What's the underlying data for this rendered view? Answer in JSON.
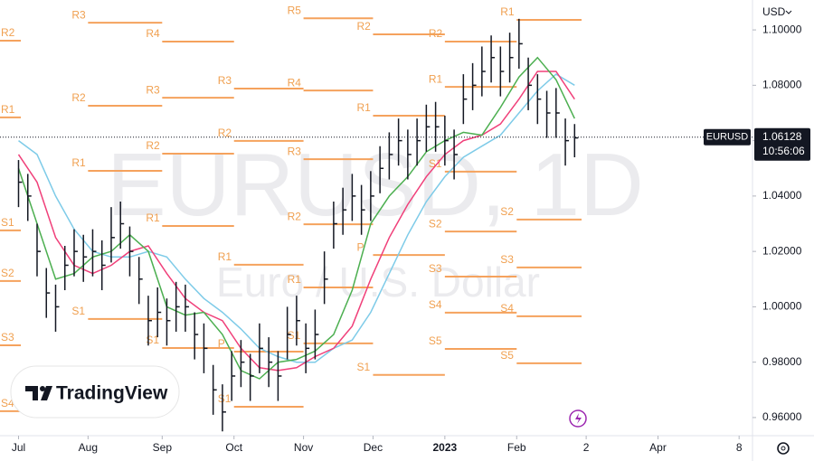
{
  "chart_data": {
    "type": "hlc",
    "watermark": "EURUSD, 1D",
    "watermark_subtitle": "Euro / U.S. Dollar",
    "brand": "TradingView",
    "currency": "USD",
    "symbol": "EURUSD",
    "last_price": 1.06128,
    "countdown": "10:56:06",
    "color": "#131722",
    "x": [
      0,
      4,
      8,
      12,
      16,
      20,
      24,
      28,
      32,
      36,
      40,
      44,
      48,
      52,
      56,
      60,
      64,
      68,
      72,
      76,
      80,
      84,
      88,
      92,
      96,
      100,
      104,
      108,
      112,
      116,
      120,
      124,
      128,
      132,
      136,
      140,
      144,
      148,
      152,
      156,
      160,
      164,
      168,
      172,
      176,
      180,
      184,
      188,
      192,
      196,
      200,
      204,
      208,
      212,
      216,
      220,
      224,
      228,
      232,
      236,
      240
    ],
    "high": [
      1.053,
      1.048,
      1.03,
      1.014,
      1.008,
      1.022,
      1.028,
      1.026,
      1.028,
      1.024,
      1.036,
      1.038,
      1.029,
      1.018,
      1.004,
      1.007,
      1.003,
      1.009,
      1.008,
      0.998,
      0.994,
      0.979,
      0.972,
      0.984,
      0.988,
      0.983,
      0.994,
      0.989,
      0.984,
      1.0,
      1.004,
      0.994,
      0.999,
      1.02,
      1.038,
      1.043,
      1.048,
      1.044,
      1.049,
      1.058,
      1.063,
      1.068,
      1.064,
      1.068,
      1.073,
      1.074,
      1.069,
      1.064,
      1.084,
      1.088,
      1.094,
      1.098,
      1.094,
      1.099,
      1.104,
      1.09,
      1.084,
      1.078,
      1.079,
      1.068,
      1.066
    ],
    "low": [
      1.036,
      1.031,
      1.011,
      0.996,
      0.991,
      1.006,
      1.011,
      1.009,
      1.011,
      1.006,
      1.016,
      1.021,
      1.011,
      1.001,
      0.986,
      0.989,
      0.986,
      0.991,
      0.991,
      0.981,
      0.976,
      0.961,
      0.955,
      0.966,
      0.971,
      0.966,
      0.976,
      0.971,
      0.966,
      0.981,
      0.986,
      0.976,
      0.981,
      1.001,
      1.021,
      1.026,
      1.031,
      1.026,
      1.031,
      1.041,
      1.046,
      1.051,
      1.046,
      1.051,
      1.056,
      1.056,
      1.051,
      1.046,
      1.066,
      1.071,
      1.076,
      1.081,
      1.076,
      1.081,
      1.086,
      1.071,
      1.066,
      1.061,
      1.061,
      1.051,
      1.054
    ],
    "close": [
      1.045,
      1.04,
      1.02,
      1.005,
      1.0,
      1.015,
      1.02,
      1.018,
      1.02,
      1.015,
      1.025,
      1.03,
      1.02,
      1.01,
      0.995,
      0.998,
      0.995,
      1.0,
      1.0,
      0.99,
      0.985,
      0.97,
      0.962,
      0.975,
      0.98,
      0.975,
      0.985,
      0.98,
      0.975,
      0.99,
      0.995,
      0.985,
      0.99,
      1.01,
      1.03,
      1.035,
      1.04,
      1.035,
      1.04,
      1.05,
      1.055,
      1.06,
      1.055,
      1.06,
      1.065,
      1.065,
      1.06,
      1.055,
      1.075,
      1.08,
      1.085,
      1.09,
      1.085,
      1.09,
      1.095,
      1.08,
      1.075,
      1.07,
      1.07,
      1.06,
      1.061
    ],
    "ma_x": [
      0,
      8,
      16,
      24,
      32,
      40,
      48,
      56,
      64,
      72,
      80,
      88,
      96,
      104,
      112,
      120,
      128,
      136,
      144,
      152,
      160,
      168,
      176,
      184,
      192,
      200,
      208,
      216,
      224,
      232,
      240
    ],
    "lines": [
      {
        "color": "#7ecbe8",
        "values": [
          1.06,
          1.055,
          1.04,
          1.028,
          1.02,
          1.018,
          1.018,
          1.02,
          1.018,
          1.01,
          1.003,
          0.998,
          0.992,
          0.985,
          0.982,
          0.98,
          0.98,
          0.985,
          0.988,
          0.998,
          1.012,
          1.026,
          1.038,
          1.047,
          1.054,
          1.058,
          1.062,
          1.07,
          1.078,
          1.084,
          1.08
        ]
      },
      {
        "color": "#f0407a",
        "values": [
          1.055,
          1.045,
          1.025,
          1.015,
          1.012,
          1.015,
          1.02,
          1.022,
          1.012,
          1.003,
          0.998,
          0.995,
          0.985,
          0.978,
          0.977,
          0.978,
          0.982,
          0.985,
          0.993,
          1.01,
          1.025,
          1.037,
          1.047,
          1.055,
          1.06,
          1.062,
          1.066,
          1.075,
          1.085,
          1.085,
          1.075
        ]
      },
      {
        "color": "#4caf50",
        "values": [
          1.05,
          1.03,
          1.01,
          1.012,
          1.018,
          1.02,
          1.026,
          1.02,
          1.0,
          0.997,
          0.998,
          0.99,
          0.977,
          0.974,
          0.98,
          0.981,
          0.984,
          0.99,
          1.006,
          1.03,
          1.04,
          1.047,
          1.056,
          1.06,
          1.063,
          1.062,
          1.072,
          1.083,
          1.09,
          1.082,
          1.068
        ]
      }
    ],
    "pivot_color": "#f5a25d",
    "pivots": [
      {
        "label": "R2",
        "x0": -8,
        "x1": 1,
        "value": 1.0961
      },
      {
        "label": "R1",
        "x0": -8,
        "x1": 1,
        "value": 1.0684
      },
      {
        "label": "S1",
        "x0": -8,
        "x1": 1,
        "value": 1.0276
      },
      {
        "label": "S2",
        "x0": -8,
        "x1": 1,
        "value": 1.0093
      },
      {
        "label": "S3",
        "x0": -8,
        "x1": 1,
        "value": 0.9861
      },
      {
        "label": "S4",
        "x0": -8,
        "x1": 1,
        "value": 0.9623
      },
      {
        "label": "R3",
        "x0": 30,
        "x1": 62,
        "value": 1.1026
      },
      {
        "label": "R2",
        "x0": 30,
        "x1": 62,
        "value": 1.0726
      },
      {
        "label": "R1",
        "x0": 30,
        "x1": 62,
        "value": 1.0491
      },
      {
        "label": "S1",
        "x0": 30,
        "x1": 62,
        "value": 0.9956
      },
      {
        "label": "R4",
        "x0": 62,
        "x1": 93,
        "value": 1.0958
      },
      {
        "label": "R3",
        "x0": 62,
        "x1": 93,
        "value": 1.0755
      },
      {
        "label": "R2",
        "x0": 62,
        "x1": 93,
        "value": 1.0553
      },
      {
        "label": "R1",
        "x0": 62,
        "x1": 93,
        "value": 1.0292
      },
      {
        "label": "S1",
        "x0": 62,
        "x1": 93,
        "value": 0.9851
      },
      {
        "label": "R3",
        "x0": 93,
        "x1": 123,
        "value": 1.0788
      },
      {
        "label": "R2",
        "x0": 93,
        "x1": 123,
        "value": 1.0599
      },
      {
        "label": "R1",
        "x0": 93,
        "x1": 123,
        "value": 1.0152
      },
      {
        "label": "P",
        "x0": 93,
        "x1": 123,
        "value": 0.9838
      },
      {
        "label": "S1",
        "x0": 93,
        "x1": 123,
        "value": 0.9639
      },
      {
        "label": "R5",
        "x0": 123,
        "x1": 153,
        "value": 1.1042
      },
      {
        "label": "R4",
        "x0": 123,
        "x1": 153,
        "value": 1.0781
      },
      {
        "label": "R3",
        "x0": 123,
        "x1": 153,
        "value": 1.0533
      },
      {
        "label": "R2",
        "x0": 123,
        "x1": 153,
        "value": 1.0298
      },
      {
        "label": "R1",
        "x0": 123,
        "x1": 153,
        "value": 1.007
      },
      {
        "label": "S1",
        "x0": 123,
        "x1": 153,
        "value": 0.9868
      },
      {
        "label": "R2",
        "x0": 153,
        "x1": 184,
        "value": 1.0984
      },
      {
        "label": "R1",
        "x0": 153,
        "x1": 184,
        "value": 1.069
      },
      {
        "label": "P",
        "x0": 153,
        "x1": 184,
        "value": 1.0187
      },
      {
        "label": "S1",
        "x0": 153,
        "x1": 184,
        "value": 0.9754
      },
      {
        "label": "R2",
        "x0": 184,
        "x1": 215,
        "value": 1.0958
      },
      {
        "label": "R1",
        "x0": 184,
        "x1": 215,
        "value": 1.0794
      },
      {
        "label": "S1",
        "x0": 184,
        "x1": 215,
        "value": 1.0488
      },
      {
        "label": "S2",
        "x0": 184,
        "x1": 215,
        "value": 1.0272
      },
      {
        "label": "S3",
        "x0": 184,
        "x1": 215,
        "value": 1.0109
      },
      {
        "label": "S4",
        "x0": 184,
        "x1": 215,
        "value": 0.9979
      },
      {
        "label": "S5",
        "x0": 184,
        "x1": 215,
        "value": 0.9848
      },
      {
        "label": "R1",
        "x0": 215,
        "x1": 243,
        "value": 1.1036
      },
      {
        "label": "S2",
        "x0": 215,
        "x1": 243,
        "value": 1.0315
      },
      {
        "label": "S3",
        "x0": 215,
        "x1": 243,
        "value": 1.0142
      },
      {
        "label": "S4",
        "x0": 215,
        "x1": 243,
        "value": 0.9966
      },
      {
        "label": "S5",
        "x0": 215,
        "x1": 243,
        "value": 0.9796
      }
    ],
    "xlim": [
      -8,
      316
    ],
    "xticks": [
      {
        "value": 0,
        "label": "Jul"
      },
      {
        "value": 30,
        "label": "Aug"
      },
      {
        "value": 62,
        "label": "Sep"
      },
      {
        "value": 93,
        "label": "Oct"
      },
      {
        "value": 123,
        "label": "Nov"
      },
      {
        "value": 153,
        "label": "Dec"
      },
      {
        "value": 184,
        "label": "2023"
      },
      {
        "value": 215,
        "label": "Feb"
      },
      {
        "value": 245,
        "label": "2"
      },
      {
        "value": 276,
        "label": "Apr"
      },
      {
        "value": 311,
        "label": "8"
      }
    ],
    "ylim": [
      0.9541,
      1.1108
    ],
    "yticks": [
      {
        "value": 0.96,
        "label": "0.96000"
      },
      {
        "value": 0.98,
        "label": "0.98000"
      },
      {
        "value": 1.0,
        "label": "1.00000"
      },
      {
        "value": 1.02,
        "label": "1.02000"
      },
      {
        "value": 1.04,
        "label": "1.04000"
      },
      {
        "value": 1.06,
        "label": "1.06000"
      },
      {
        "value": 1.08,
        "label": "1.08000"
      },
      {
        "value": 1.1,
        "label": "1.10000"
      }
    ],
    "grid": false
  }
}
